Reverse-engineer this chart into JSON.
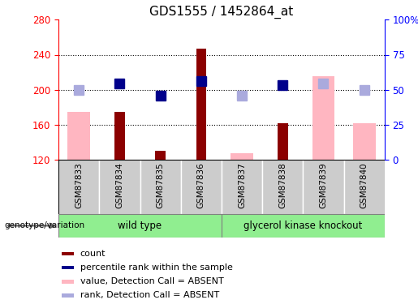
{
  "title": "GDS1555 / 1452864_at",
  "samples": [
    "GSM87833",
    "GSM87834",
    "GSM87835",
    "GSM87836",
    "GSM87837",
    "GSM87838",
    "GSM87839",
    "GSM87840"
  ],
  "count_values": [
    null,
    175,
    130,
    247,
    null,
    162,
    null,
    null
  ],
  "count_color": "#8B0000",
  "value_absent": [
    175,
    null,
    null,
    null,
    127,
    null,
    215,
    162
  ],
  "value_absent_color": "#FFB6C1",
  "rank_present_values": [
    null,
    207,
    193,
    210,
    null,
    205,
    null,
    null
  ],
  "rank_present_color": "#00008B",
  "rank_absent_values": [
    200,
    null,
    null,
    null,
    193,
    null,
    207,
    200
  ],
  "rank_absent_color": "#AAAADD",
  "ylim_left": [
    120,
    280
  ],
  "ylim_right": [
    0,
    100
  ],
  "yticks_left": [
    120,
    160,
    200,
    240,
    280
  ],
  "ytick_labels_left": [
    "120",
    "160",
    "200",
    "240",
    "280"
  ],
  "yticks_right": [
    0,
    25,
    50,
    75,
    100
  ],
  "ytick_labels_right": [
    "0",
    "25",
    "50",
    "75",
    "100%"
  ],
  "baseline": 120,
  "pink_bar_width": 0.55,
  "red_bar_width": 0.25,
  "marker_size": 8,
  "legend_items": [
    {
      "label": "count",
      "color": "#8B0000"
    },
    {
      "label": "percentile rank within the sample",
      "color": "#00008B"
    },
    {
      "label": "value, Detection Call = ABSENT",
      "color": "#FFB6C1"
    },
    {
      "label": "rank, Detection Call = ABSENT",
      "color": "#AAAADD"
    }
  ],
  "group_color": "#90EE90",
  "sample_label_bg": "#CCCCCC",
  "grid_lines": [
    160,
    200,
    240
  ]
}
